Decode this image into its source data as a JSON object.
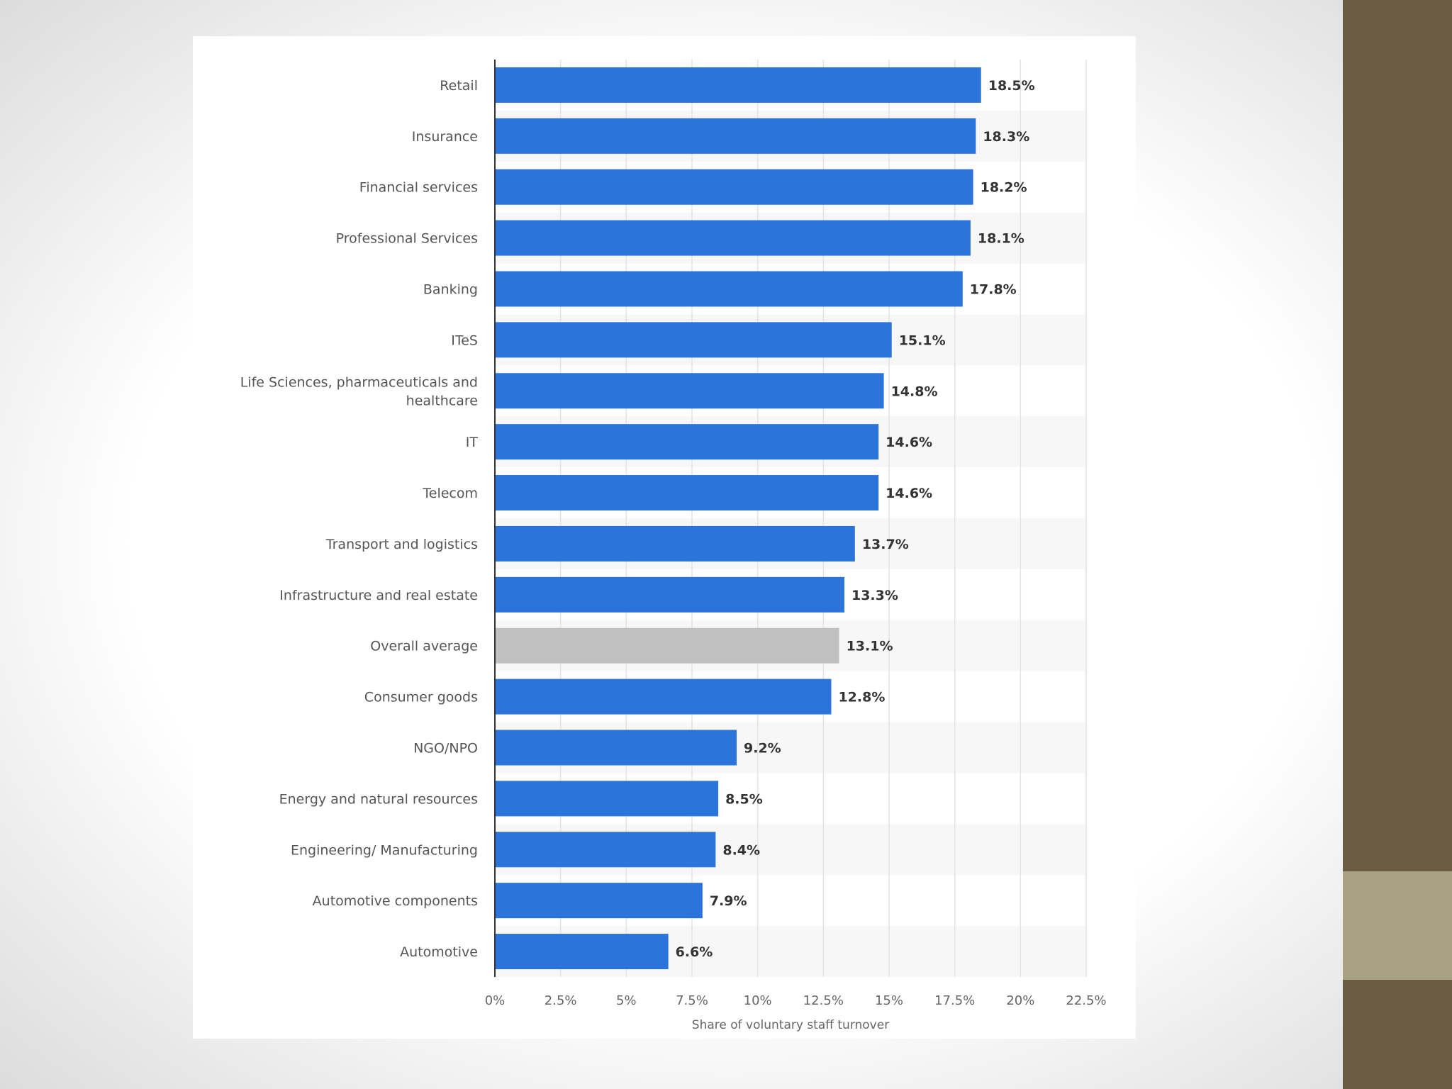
{
  "colors": {
    "bar": "#2a74db",
    "highlight_bar": "#c0c0c0",
    "side_dark": "#6b5d44",
    "side_light": "#a8a283"
  },
  "chart_data": {
    "type": "bar",
    "orientation": "horizontal",
    "categories": [
      "Retail",
      "Insurance",
      "Financial services",
      "Professional Services",
      "Banking",
      "ITeS",
      "Life Sciences, pharmaceuticals and healthcare",
      "IT",
      "Telecom",
      "Transport and logistics",
      "Infrastructure and real estate",
      "Overall average",
      "Consumer goods",
      "NGO/NPO",
      "Energy and natural resources",
      "Engineering/ Manufacturing",
      "Automotive components",
      "Automotive"
    ],
    "values": [
      18.5,
      18.3,
      18.2,
      18.1,
      17.8,
      15.1,
      14.8,
      14.6,
      14.6,
      13.7,
      13.3,
      13.1,
      12.8,
      9.2,
      8.5,
      8.4,
      7.9,
      6.6
    ],
    "value_labels": [
      "18.5%",
      "18.3%",
      "18.2%",
      "18.1%",
      "17.8%",
      "15.1%",
      "14.8%",
      "14.6%",
      "14.6%",
      "13.7%",
      "13.3%",
      "13.1%",
      "12.8%",
      "9.2%",
      "8.5%",
      "8.4%",
      "7.9%",
      "6.6%"
    ],
    "highlighted_category": "Overall average",
    "xlabel": "Share of voluntary staff turnover",
    "xlim": [
      0,
      22.5
    ],
    "xticks": [
      0,
      2.5,
      5,
      7.5,
      10,
      12.5,
      15,
      17.5,
      20,
      22.5
    ],
    "xtick_labels": [
      "0%",
      "2.5%",
      "5%",
      "7.5%",
      "10%",
      "12.5%",
      "15%",
      "17.5%",
      "20%",
      "22.5%"
    ],
    "grid": true,
    "legend": "none"
  }
}
